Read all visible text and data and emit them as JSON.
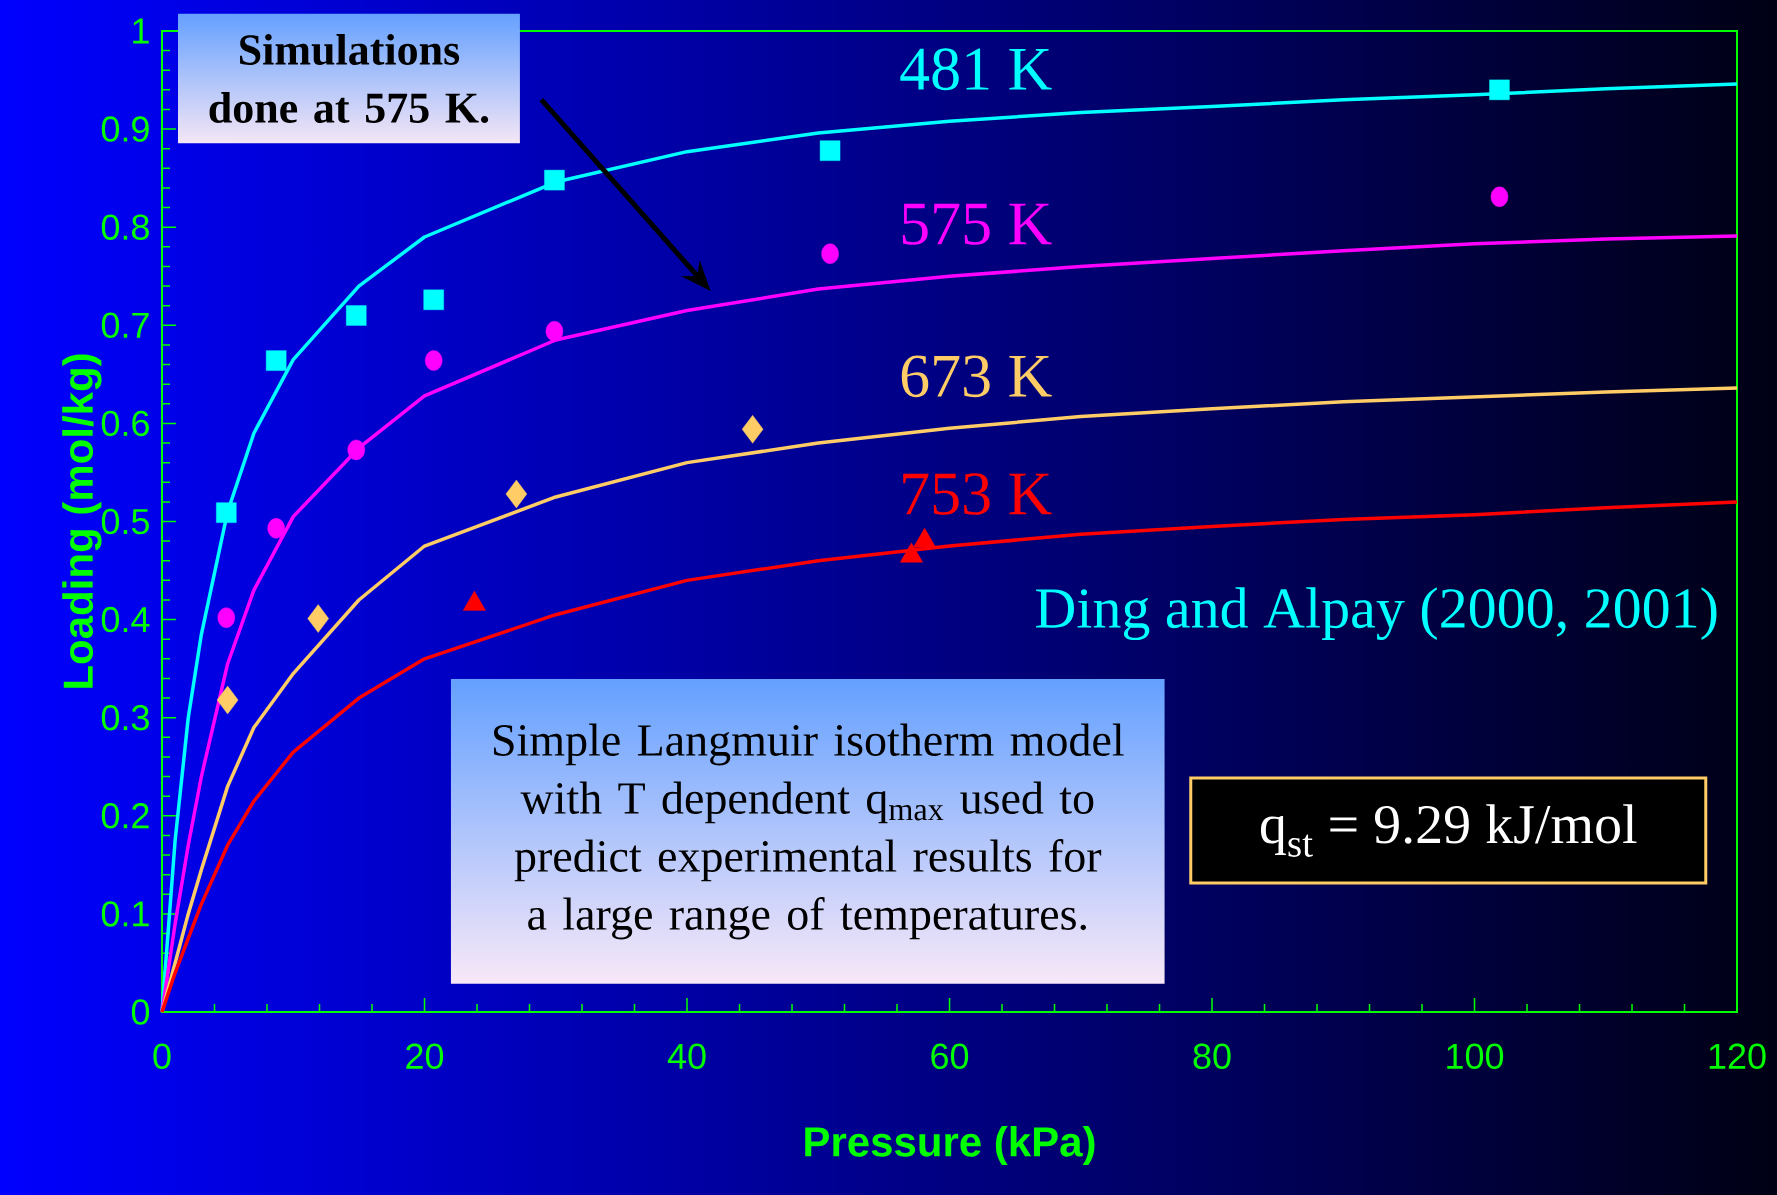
{
  "chart_data": {
    "type": "line",
    "xlabel": "Pressure (kPa)",
    "ylabel": "Loading (mol/kg)",
    "xlim": [
      0,
      120
    ],
    "ylim": [
      0,
      1
    ],
    "xticks": [
      0,
      20,
      40,
      60,
      80,
      100,
      120
    ],
    "yticks": [
      0,
      0.1,
      0.2,
      0.3,
      0.4,
      0.5,
      0.6,
      0.7,
      0.8,
      0.9,
      1
    ],
    "grid": false,
    "annotations": [
      "**Simulations done at 575 K.**",
      "Simple Langmuir isotherm model with T dependent q$_{max}$ used to predict experimental results for a large range of temperatures.",
      "q$_{st}$ = 9.29 kJ/mol",
      "Ding and Alpay (2000, 2001)"
    ],
    "series": [
      {
        "name": "481 K",
        "marker": "none",
        "color": "#00ffff",
        "x": [
          0,
          1,
          2,
          3,
          5,
          7,
          10,
          15,
          20,
          30,
          40,
          50,
          60,
          70,
          80,
          90,
          100,
          110,
          120
        ],
        "values": [
          0,
          0.175,
          0.3,
          0.385,
          0.51,
          0.59,
          0.665,
          0.74,
          0.79,
          0.846,
          0.877,
          0.896,
          0.908,
          0.917,
          0.923,
          0.93,
          0.935,
          0.941,
          0.946
        ]
      },
      {
        "name": "575 K",
        "marker": "none",
        "color": "#ff00ff",
        "x": [
          0,
          1,
          2,
          3,
          5,
          7,
          10,
          15,
          20,
          30,
          40,
          50,
          60,
          70,
          80,
          90,
          100,
          110,
          120
        ],
        "values": [
          0,
          0.09,
          0.17,
          0.24,
          0.355,
          0.43,
          0.505,
          0.575,
          0.628,
          0.685,
          0.715,
          0.737,
          0.75,
          0.76,
          0.768,
          0.776,
          0.783,
          0.788,
          0.791
        ]
      },
      {
        "name": "673 K",
        "marker": "none",
        "color": "#ffcc66",
        "x": [
          0,
          1,
          2,
          3,
          5,
          7,
          10,
          15,
          20,
          30,
          40,
          50,
          60,
          70,
          80,
          90,
          100,
          110,
          120
        ],
        "values": [
          0,
          0.05,
          0.1,
          0.145,
          0.23,
          0.29,
          0.345,
          0.42,
          0.475,
          0.525,
          0.56,
          0.58,
          0.595,
          0.607,
          0.615,
          0.622,
          0.627,
          0.632,
          0.636
        ]
      },
      {
        "name": "753 K",
        "marker": "none",
        "color": "#ff0000",
        "x": [
          0,
          1,
          2,
          3,
          5,
          7,
          10,
          15,
          20,
          30,
          40,
          50,
          60,
          70,
          80,
          90,
          100,
          110,
          120
        ],
        "values": [
          0,
          0.04,
          0.075,
          0.11,
          0.17,
          0.215,
          0.265,
          0.32,
          0.36,
          0.405,
          0.44,
          0.46,
          0.475,
          0.487,
          0.495,
          0.502,
          0.507,
          0.514,
          0.52
        ]
      },
      {
        "type": "scatter",
        "marker": "square",
        "color": "#00ffff",
        "x": [
          4.9,
          8.7,
          14.8,
          20.7,
          29.9,
          50.9,
          101.9
        ],
        "values": [
          0.509,
          0.664,
          0.71,
          0.726,
          0.848,
          0.878,
          0.94
        ]
      },
      {
        "type": "scatter",
        "marker": "circle",
        "color": "#ff00ff",
        "x": [
          4.9,
          8.7,
          14.8,
          20.7,
          29.9,
          50.9,
          101.9
        ],
        "values": [
          0.402,
          0.493,
          0.573,
          0.664,
          0.694,
          0.773,
          0.831
        ]
      },
      {
        "type": "scatter",
        "marker": "diamond",
        "color": "#ffcc66",
        "x": [
          5.0,
          11.9,
          27.0,
          45.0
        ],
        "values": [
          0.318,
          0.401,
          0.528,
          0.594
        ]
      },
      {
        "type": "scatter",
        "marker": "triangle",
        "color": "#ff0000",
        "x": [
          23.8,
          57.1,
          58.1
        ],
        "values": [
          0.416,
          0.465,
          0.48
        ]
      }
    ]
  }
}
